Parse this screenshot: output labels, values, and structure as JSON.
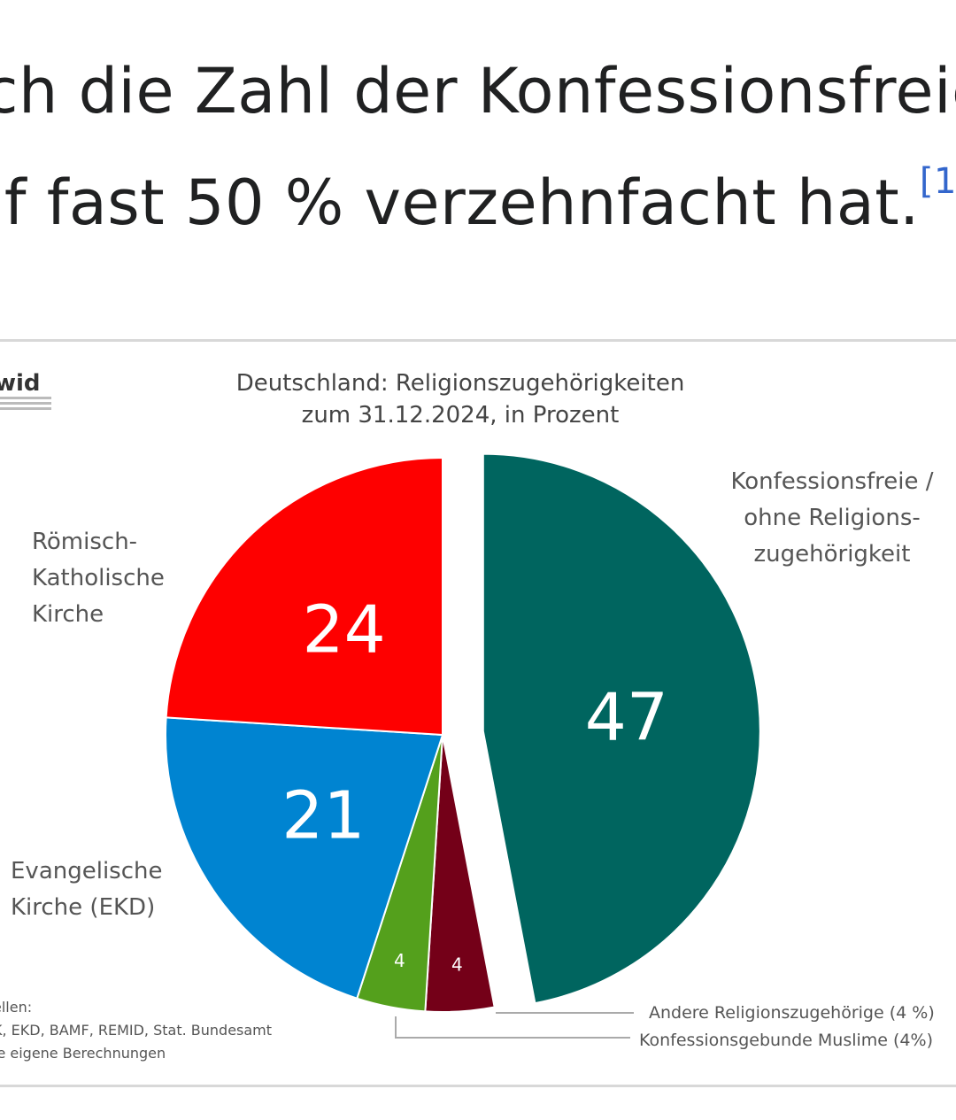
{
  "article": {
    "line1": "ch die Zahl der Konfessionsfreie",
    "line2": "uf fast 50 % verzehnfacht hat.",
    "ref": "[1]"
  },
  "figure": {
    "logo": "wid",
    "source_lines": [
      "ellen:",
      "K, EKD, BAMF, REMID, Stat. Bundesamt",
      "ie eigene Berechnungen"
    ]
  },
  "chart_data": {
    "type": "pie",
    "title": "Deutschland: Religionszugehörigkeiten",
    "subtitle": "zum 31.12.2024, in Prozent",
    "slices": [
      {
        "label": "Konfessionsfreie / ohne Religions- zugehörigkeit",
        "label_lines": [
          "Konfessionsfreie /",
          "ohne Religions-",
          "zugehörigkeit"
        ],
        "value": 47,
        "color": "#00655f",
        "exploded": true
      },
      {
        "label": "Konfessionsgebunde Muslime (4%)",
        "value": 4,
        "color": "#740018"
      },
      {
        "label": "Andere Religionszugehörige (4 %)",
        "value": 4,
        "color": "#54a01c"
      },
      {
        "label": "Evangelische Kirche (EKD)",
        "label_lines": [
          "Evangelische",
          "Kirche (EKD)"
        ],
        "value": 21,
        "color": "#0084d1"
      },
      {
        "label": "Römisch-Katholische Kirche",
        "label_lines": [
          "Römisch-",
          "Katholische",
          "Kirche"
        ],
        "value": 24,
        "color": "#fe0000"
      }
    ]
  }
}
